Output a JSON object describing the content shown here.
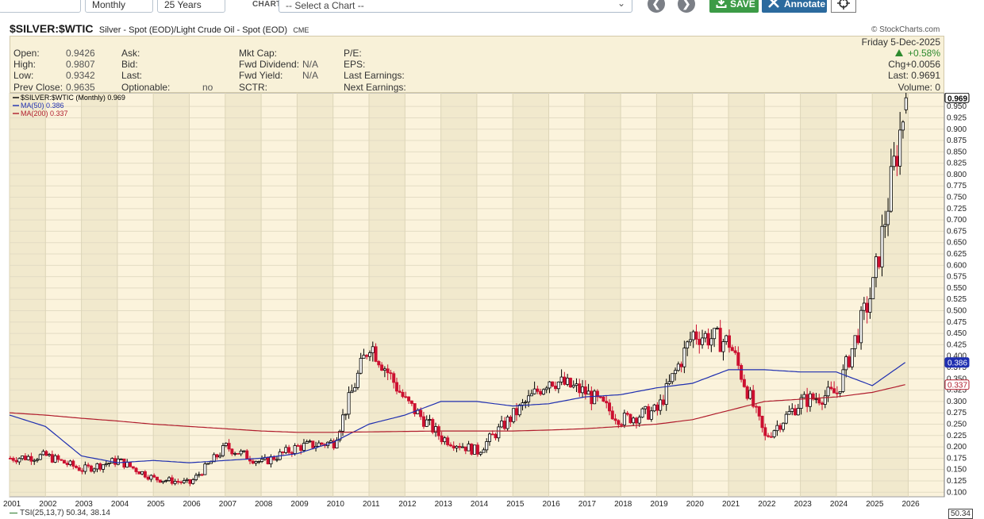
{
  "toolbar": {
    "period_value": "Monthly",
    "range_value": "25 Years",
    "chart_label": "CHART",
    "chart_select_placeholder": "-- Select a Chart --",
    "save_label": "SAVE",
    "annotate_label": "Annotate"
  },
  "header": {
    "symbol": "$SILVER:$WTIC",
    "description": "Silver - Spot (EOD)/Light Crude Oil - Spot (EOD)",
    "exchange": "CME",
    "credit": "© StockCharts.com"
  },
  "quote": {
    "open_label": "Open:",
    "open_value": "0.9426",
    "high_label": "High:",
    "high_value": "0.9807",
    "low_label": "Low:",
    "low_value": "0.9342",
    "prev_close_label": "Prev Close:",
    "prev_close_value": "0.9635",
    "ask_label": "Ask:",
    "bid_label": "Bid:",
    "last_label": "Last:",
    "optionable_label": "Optionable:",
    "optionable_value": "no",
    "mkt_cap_label": "Mkt Cap:",
    "fwd_dividend_label": "Fwd Dividend:",
    "fwd_dividend_value": "N/A",
    "fwd_yield_label": "Fwd Yield:",
    "fwd_yield_value": "N/A",
    "sctr_label": "SCTR:",
    "pe_label": "P/E:",
    "eps_label": "EPS:",
    "last_earnings_label": "Last Earnings:",
    "next_earnings_label": "Next Earnings:",
    "date": "Friday  5-Dec-2025",
    "change_pct": "+0.58%",
    "chg": "Chg+0.0056",
    "last": "Last: 0.9691",
    "volume": "Volume:   0"
  },
  "legend": {
    "main": "$SILVER:$WTIC (Monthly) 0.969",
    "ma50": "MA(50) 0.386",
    "ma200": "MA(200) 0.337"
  },
  "indicator": {
    "tsi_label": "TSI(25,13,7) 50.34, 38.14",
    "tsi_value_tag": "50.34"
  },
  "colors": {
    "up": "#000000",
    "down": "#cc1030",
    "ma50": "#1f2fb0",
    "ma200": "#b01c2c",
    "panel_bg": "#fbf3dc",
    "band_bg": "#f1e9cd",
    "save_green": "#3c9b46",
    "annotate_blue": "#2b6a9e"
  },
  "chart_data": {
    "type": "line",
    "title": "$SILVER:$WTIC (Monthly)",
    "ylim": [
      0.09,
      0.98
    ],
    "y_ticks": [
      "0.100",
      "0.125",
      "0.150",
      "0.175",
      "0.200",
      "0.225",
      "0.250",
      "0.275",
      "0.300",
      "0.325",
      "0.350",
      "0.375",
      "0.400",
      "0.425",
      "0.450",
      "0.475",
      "0.500",
      "0.525",
      "0.550",
      "0.575",
      "0.600",
      "0.625",
      "0.650",
      "0.675",
      "0.700",
      "0.725",
      "0.750",
      "0.775",
      "0.800",
      "0.825",
      "0.850",
      "0.875",
      "0.900",
      "0.925",
      "0.950"
    ],
    "x_ticks": [
      "2001",
      "2002",
      "2003",
      "2004",
      "2005",
      "2006",
      "2007",
      "2008",
      "2009",
      "2010",
      "2011",
      "2012",
      "2013",
      "2014",
      "2015",
      "2016",
      "2017",
      "2018",
      "2019",
      "2020",
      "2021",
      "2022",
      "2023",
      "2024",
      "2025",
      "2026"
    ],
    "price_tags": {
      "last": "0.969",
      "ma50": "0.386",
      "ma200": "0.337"
    },
    "series": [
      {
        "name": "$SILVER:$WTIC",
        "x": [
          "2001",
          "2002",
          "2003",
          "2004",
          "2005",
          "2006",
          "2007",
          "2008",
          "2009",
          "2010",
          "2011",
          "2012",
          "2013",
          "2014",
          "2015",
          "2016",
          "2017",
          "2018",
          "2019",
          "2020",
          "2021",
          "2022",
          "2023",
          "2024",
          "2025",
          "2025-12"
        ],
        "values": [
          0.175,
          0.18,
          0.15,
          0.17,
          0.13,
          0.12,
          0.2,
          0.165,
          0.2,
          0.21,
          0.43,
          0.3,
          0.22,
          0.19,
          0.27,
          0.35,
          0.32,
          0.26,
          0.28,
          0.45,
          0.43,
          0.22,
          0.3,
          0.32,
          0.55,
          0.969
        ]
      },
      {
        "name": "MA(50)",
        "x": [
          "2001",
          "2002",
          "2003",
          "2004",
          "2005",
          "2006",
          "2007",
          "2008",
          "2009",
          "2010",
          "2011",
          "2012",
          "2013",
          "2014",
          "2015",
          "2016",
          "2017",
          "2018",
          "2019",
          "2020",
          "2021",
          "2022",
          "2023",
          "2024",
          "2025",
          "2025-12"
        ],
        "values": [
          0.27,
          0.245,
          0.18,
          0.165,
          0.17,
          0.165,
          0.17,
          0.175,
          0.185,
          0.21,
          0.25,
          0.27,
          0.3,
          0.3,
          0.29,
          0.295,
          0.31,
          0.315,
          0.33,
          0.34,
          0.37,
          0.37,
          0.365,
          0.365,
          0.335,
          0.386
        ]
      },
      {
        "name": "MA(200)",
        "x": [
          "2001",
          "2002",
          "2003",
          "2004",
          "2005",
          "2006",
          "2007",
          "2008",
          "2009",
          "2010",
          "2011",
          "2012",
          "2013",
          "2014",
          "2015",
          "2016",
          "2017",
          "2018",
          "2019",
          "2020",
          "2021",
          "2022",
          "2023",
          "2024",
          "2025",
          "2025-12"
        ],
        "values": [
          0.275,
          0.27,
          0.263,
          0.257,
          0.25,
          0.245,
          0.24,
          0.235,
          0.232,
          0.232,
          0.233,
          0.234,
          0.235,
          0.235,
          0.235,
          0.237,
          0.24,
          0.245,
          0.25,
          0.26,
          0.28,
          0.3,
          0.305,
          0.31,
          0.32,
          0.337
        ]
      }
    ]
  }
}
